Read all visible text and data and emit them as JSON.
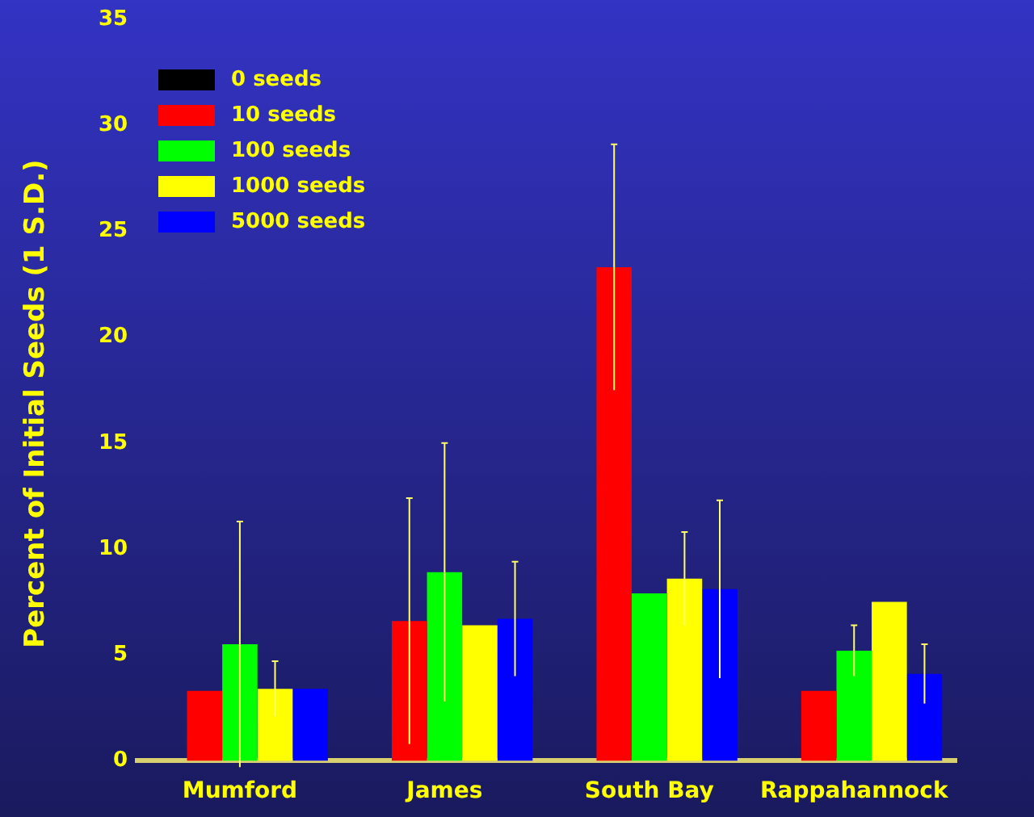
{
  "chart_data": {
    "type": "bar",
    "ylabel": "Percent of Initial Seeds (1 S.D.)",
    "categories": [
      "Mumford",
      "James",
      "South Bay",
      "Rappahannock"
    ],
    "series": [
      {
        "name": "0 seeds",
        "color": "#000000",
        "values": [
          0,
          0,
          0,
          0
        ]
      },
      {
        "name": "10 seeds",
        "color": "#ff0000",
        "values": [
          3.3,
          6.6,
          23.3,
          3.3
        ],
        "errors": [
          null,
          5.8,
          5.8,
          null
        ]
      },
      {
        "name": "100 seeds",
        "color": "#00ff00",
        "values": [
          5.5,
          8.9,
          7.9,
          5.2
        ],
        "errors": [
          5.8,
          6.1,
          null,
          1.2
        ]
      },
      {
        "name": "1000 seeds",
        "color": "#ffff00",
        "values": [
          3.4,
          6.4,
          8.6,
          7.5
        ],
        "errors": [
          1.3,
          null,
          2.2,
          null
        ]
      },
      {
        "name": "5000 seeds",
        "color": "#0000ff",
        "values": [
          3.4,
          6.7,
          8.1,
          4.1
        ],
        "errors": [
          null,
          2.7,
          4.2,
          1.4
        ]
      }
    ],
    "ylim": [
      0,
      35
    ],
    "yticks": [
      0,
      5,
      10,
      15,
      20,
      25,
      30,
      35
    ],
    "grid": false,
    "legend": "top left"
  }
}
